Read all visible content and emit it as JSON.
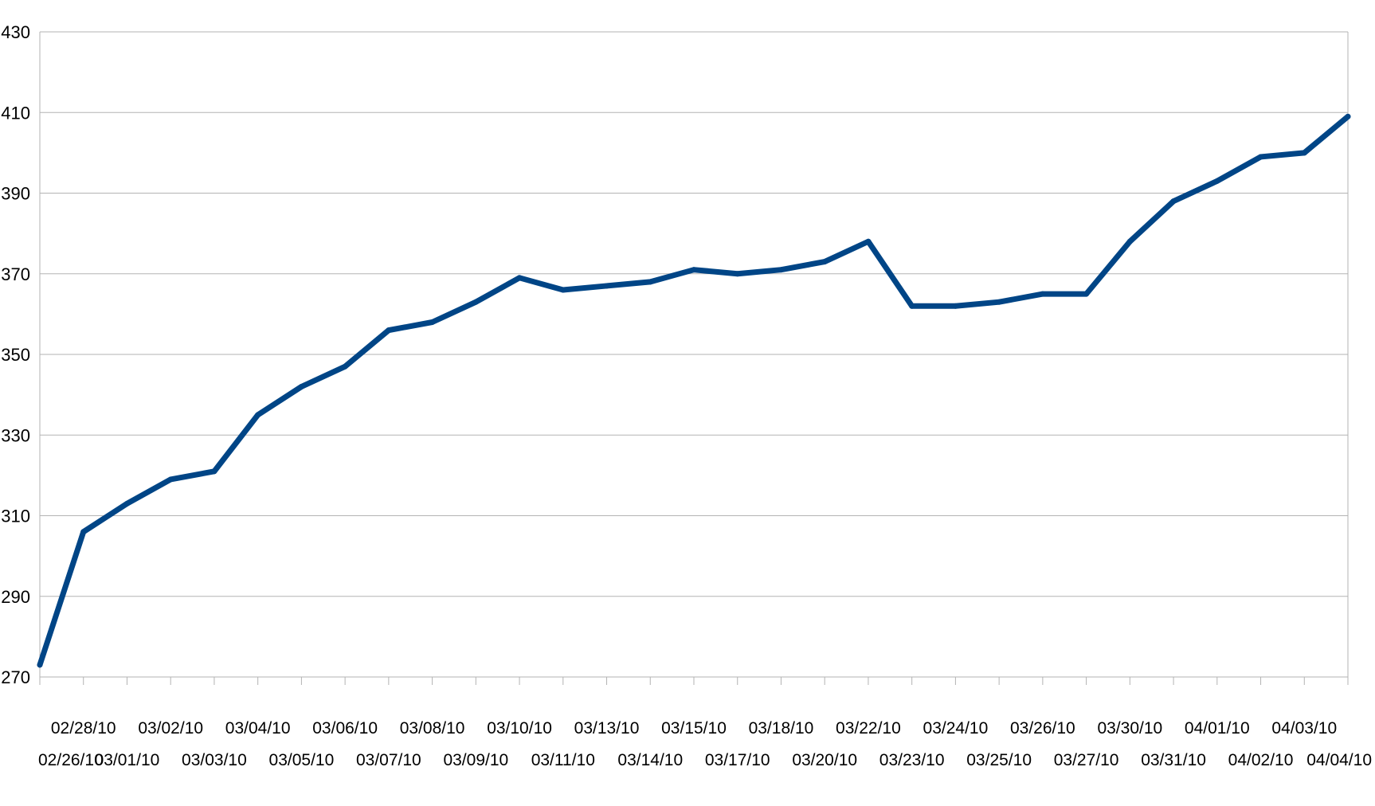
{
  "chart_data": {
    "type": "line",
    "title": "",
    "xlabel": "",
    "ylabel": "",
    "ylim": [
      270,
      430
    ],
    "yticks": [
      270,
      290,
      310,
      330,
      350,
      370,
      390,
      410,
      430
    ],
    "y_tick_labels": [
      "270",
      "290",
      "310",
      "330",
      "350",
      "370",
      "390",
      "410",
      "430"
    ],
    "grid": true,
    "legend": "none",
    "line_color": "#004586",
    "categories": [
      "02/26/10",
      "02/28/10",
      "03/01/10",
      "03/02/10",
      "03/03/10",
      "03/04/10",
      "03/05/10",
      "03/06/10",
      "03/07/10",
      "03/08/10",
      "03/09/10",
      "03/10/10",
      "03/11/10",
      "03/13/10",
      "03/14/10",
      "03/15/10",
      "03/17/10",
      "03/18/10",
      "03/20/10",
      "03/22/10",
      "03/23/10",
      "03/24/10",
      "03/25/10",
      "03/26/10",
      "03/27/10",
      "03/30/10",
      "03/31/10",
      "04/01/10",
      "04/02/10",
      "04/03/10",
      "04/04/10"
    ],
    "series": [
      {
        "values": [
          273,
          306,
          313,
          319,
          321,
          335,
          342,
          347,
          356,
          358,
          363,
          369,
          366,
          367,
          368,
          371,
          370,
          371,
          373,
          378,
          362,
          362,
          363,
          365,
          365,
          378,
          388,
          393,
          399,
          400,
          409
        ]
      }
    ]
  }
}
